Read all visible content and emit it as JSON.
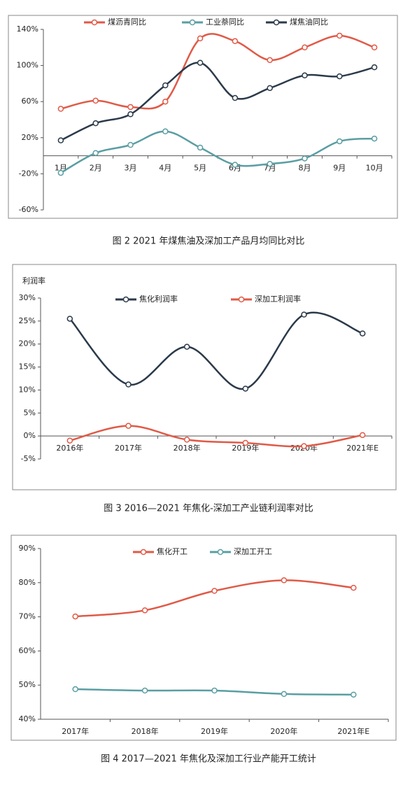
{
  "chart_data": [
    {
      "type": "line",
      "caption": "图 2 2021 年煤焦油及深加工产品月均同比对比",
      "categories": [
        "1月",
        "2月",
        "3月",
        "4月",
        "5月",
        "6月",
        "7月",
        "8月",
        "9月",
        "10月"
      ],
      "series": [
        {
          "name": "煤沥青同比",
          "color": "#e05a47",
          "values": [
            52,
            61,
            54,
            60,
            130,
            127,
            106,
            120,
            133,
            120
          ]
        },
        {
          "name": "工业萘同比",
          "color": "#5a9ea3",
          "values": [
            -19,
            3,
            12,
            27,
            9,
            -10,
            -9,
            -3,
            16,
            19
          ]
        },
        {
          "name": "煤焦油同比",
          "color": "#2b3a4a",
          "values": [
            17,
            36,
            46,
            78,
            103,
            64,
            75,
            89,
            88,
            98
          ]
        }
      ],
      "ylim": [
        -60,
        140
      ],
      "yticks": [
        {
          "value": -60,
          "label": "-60%"
        },
        {
          "value": -20,
          "label": "-20%"
        },
        {
          "value": 20,
          "label": "20%"
        },
        {
          "value": 60,
          "label": "60%"
        },
        {
          "value": 100,
          "label": "100%"
        },
        {
          "value": 140,
          "label": "140%"
        }
      ],
      "grid": false
    },
    {
      "type": "line",
      "caption": "图 3 2016—2021 年焦化-深加工产业链利润率对比",
      "y_label": "利润率",
      "categories": [
        "2016年",
        "2017年",
        "2018年",
        "2019年",
        "2020年",
        "2021年E"
      ],
      "series": [
        {
          "name": "焦化利润率",
          "color": "#2b3a4a",
          "values": [
            25.5,
            11.2,
            19.4,
            10.3,
            26.4,
            22.3
          ]
        },
        {
          "name": "深加工利润率",
          "color": "#e05a47",
          "values": [
            -1,
            2.2,
            -0.8,
            -1.5,
            -2.2,
            0.2
          ]
        }
      ],
      "ylim": [
        -5,
        30
      ],
      "yticks": [
        {
          "value": -5,
          "label": "-5%"
        },
        {
          "value": 0,
          "label": "0%"
        },
        {
          "value": 5,
          "label": "5%"
        },
        {
          "value": 10,
          "label": "10%"
        },
        {
          "value": 15,
          "label": "15%"
        },
        {
          "value": 20,
          "label": "20%"
        },
        {
          "value": 25,
          "label": "25%"
        },
        {
          "value": 30,
          "label": "30%"
        }
      ],
      "grid": false
    },
    {
      "type": "line",
      "caption": "图 4 2017—2021 年焦化及深加工行业产能开工统计",
      "categories": [
        "2017年",
        "2018年",
        "2019年",
        "2020年",
        "2021年E"
      ],
      "series": [
        {
          "name": "焦化开工",
          "color": "#e05a47",
          "values": [
            70.1,
            71.9,
            77.6,
            80.7,
            78.5
          ]
        },
        {
          "name": "深加工开工",
          "color": "#5a9ea3",
          "values": [
            48.8,
            48.4,
            48.4,
            47.4,
            47.2
          ]
        }
      ],
      "ylim": [
        40,
        90
      ],
      "yticks": [
        {
          "value": 40,
          "label": "40%"
        },
        {
          "value": 50,
          "label": "50%"
        },
        {
          "value": 60,
          "label": "60%"
        },
        {
          "value": 70,
          "label": "70%"
        },
        {
          "value": 80,
          "label": "80%"
        },
        {
          "value": 90,
          "label": "90%"
        }
      ],
      "grid": false
    }
  ]
}
